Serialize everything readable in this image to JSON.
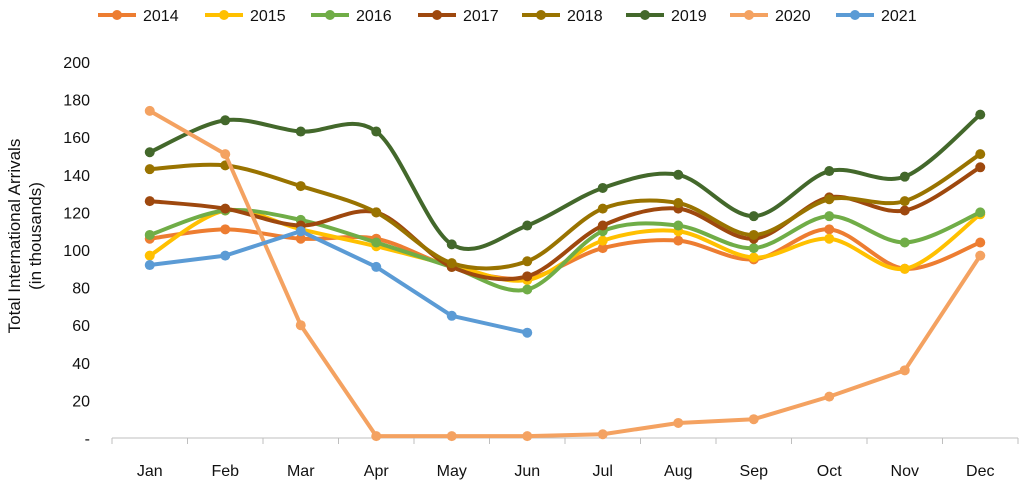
{
  "chart_data": {
    "type": "line",
    "ylabel_line1": "Total International Arrivals",
    "ylabel_line2": "(in thousands)",
    "categories": [
      "Jan",
      "Feb",
      "Mar",
      "Apr",
      "May",
      "Jun",
      "Jul",
      "Aug",
      "Sep",
      "Oct",
      "Nov",
      "Dec"
    ],
    "ylim": [
      0,
      200
    ],
    "yticks": [
      0,
      20,
      40,
      60,
      80,
      100,
      120,
      140,
      160,
      180,
      200
    ],
    "ytick_labels": [
      "-",
      "20",
      "40",
      "60",
      "80",
      "100",
      "120",
      "140",
      "160",
      "180",
      "200"
    ],
    "grid": false,
    "legend_position": "top",
    "smooth": true,
    "series": [
      {
        "name": "2014",
        "color": "#ED7D31",
        "values": [
          106,
          111,
          106,
          106,
          91,
          85,
          101,
          105,
          95,
          111,
          90,
          104
        ]
      },
      {
        "name": "2015",
        "color": "#FFC000",
        "values": [
          97,
          121,
          111,
          102,
          92,
          84,
          105,
          110,
          96,
          106,
          90,
          119
        ]
      },
      {
        "name": "2016",
        "color": "#70AD47",
        "values": [
          108,
          121,
          116,
          104,
          91,
          79,
          110,
          113,
          101,
          118,
          104,
          120
        ]
      },
      {
        "name": "2017",
        "color": "#9E480E",
        "values": [
          126,
          122,
          113,
          120,
          91,
          86,
          113,
          122,
          106,
          128,
          121,
          144
        ]
      },
      {
        "name": "2018",
        "color": "#997300",
        "values": [
          143,
          145,
          134,
          120,
          93,
          94,
          122,
          125,
          108,
          127,
          126,
          151
        ]
      },
      {
        "name": "2019",
        "color": "#43682B",
        "values": [
          152,
          169,
          163,
          163,
          103,
          113,
          133,
          140,
          118,
          142,
          139,
          172
        ]
      },
      {
        "name": "2020",
        "color": "#F4A261",
        "values": [
          174,
          151,
          60,
          1,
          1,
          1,
          2,
          8,
          10,
          22,
          36,
          97
        ]
      },
      {
        "name": "2021",
        "color": "#5B9BD5",
        "values": [
          92,
          97,
          110,
          91,
          65,
          56,
          null,
          null,
          null,
          null,
          null,
          null
        ]
      }
    ]
  }
}
